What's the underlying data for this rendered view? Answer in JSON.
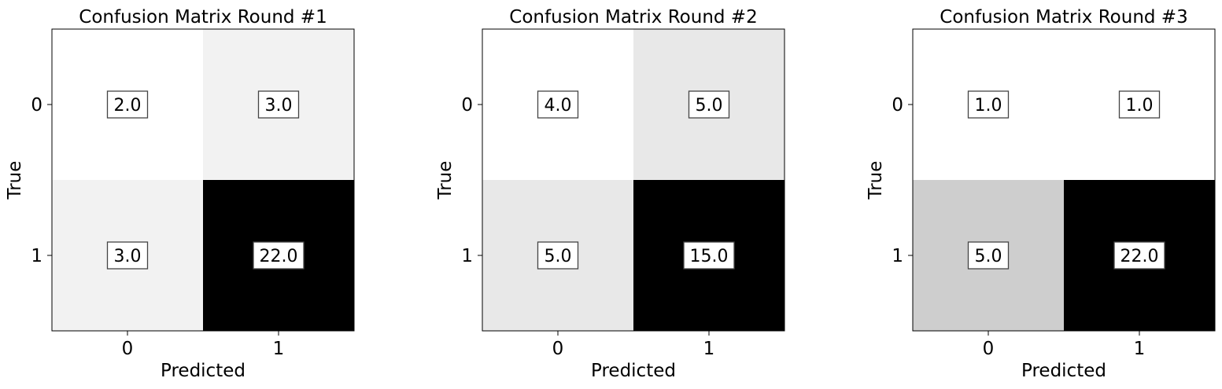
{
  "chart_data": [
    {
      "type": "heatmap",
      "title": "Confusion Matrix Round #1",
      "xlabel": "Predicted",
      "ylabel": "True",
      "x_ticks": [
        "0",
        "1"
      ],
      "y_ticks": [
        "0",
        "1"
      ],
      "values": [
        [
          2.0,
          3.0
        ],
        [
          3.0,
          22.0
        ]
      ],
      "value_labels": [
        [
          "2.0",
          "3.0"
        ],
        [
          "3.0",
          "22.0"
        ]
      ],
      "colormap": "binary",
      "grid": false
    },
    {
      "type": "heatmap",
      "title": "Confusion Matrix Round #2",
      "xlabel": "Predicted",
      "ylabel": "True",
      "x_ticks": [
        "0",
        "1"
      ],
      "y_ticks": [
        "0",
        "1"
      ],
      "values": [
        [
          4.0,
          5.0
        ],
        [
          5.0,
          15.0
        ]
      ],
      "value_labels": [
        [
          "4.0",
          "5.0"
        ],
        [
          "5.0",
          "15.0"
        ]
      ],
      "colormap": "binary",
      "grid": false
    },
    {
      "type": "heatmap",
      "title": "Confusion Matrix Round #3",
      "xlabel": "Predicted",
      "ylabel": "True",
      "x_ticks": [
        "0",
        "1"
      ],
      "y_ticks": [
        "0",
        "1"
      ],
      "values": [
        [
          1.0,
          1.0
        ],
        [
          5.0,
          22.0
        ]
      ],
      "value_labels": [
        [
          "1.0",
          "1.0"
        ],
        [
          "5.0",
          "22.0"
        ]
      ],
      "colormap": "binary",
      "grid": false
    }
  ]
}
